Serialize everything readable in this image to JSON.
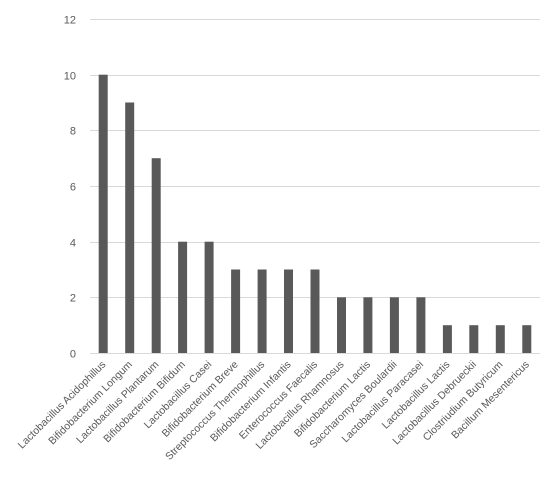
{
  "chart_data": {
    "type": "bar",
    "title": "",
    "xlabel": "",
    "ylabel": "",
    "ylim": [
      0,
      12
    ],
    "yticks": [
      0,
      2,
      4,
      6,
      8,
      10,
      12
    ],
    "grid": true,
    "legend": "none",
    "bar_color": "#595959",
    "categories": [
      "Lactobacillus Acidophillus",
      "Bifidobacterium Longum",
      "Lactobacillus Plantarum",
      "Bifidobacterium Bifidum",
      "Lactobacillus Casei",
      "Bifidobacterium Breve",
      "Streptococcus Thermophillus",
      "Bifidobacterium Infantis",
      "Enterococcus Faecalis",
      "Lactobacillus Rhamnosus",
      "Bifidobacterium Lactis",
      "Saccharomyces Boulardii",
      "Lactobacillus Paracasei",
      "Lactobacillus Lactis",
      "Lactobacillus Debrueckii",
      "Clostriudium Butyricum",
      "Bacillum Mesentericus"
    ],
    "values": [
      10,
      9,
      7,
      4,
      4,
      3,
      3,
      3,
      3,
      2,
      2,
      2,
      2,
      1,
      1,
      1,
      1
    ]
  }
}
